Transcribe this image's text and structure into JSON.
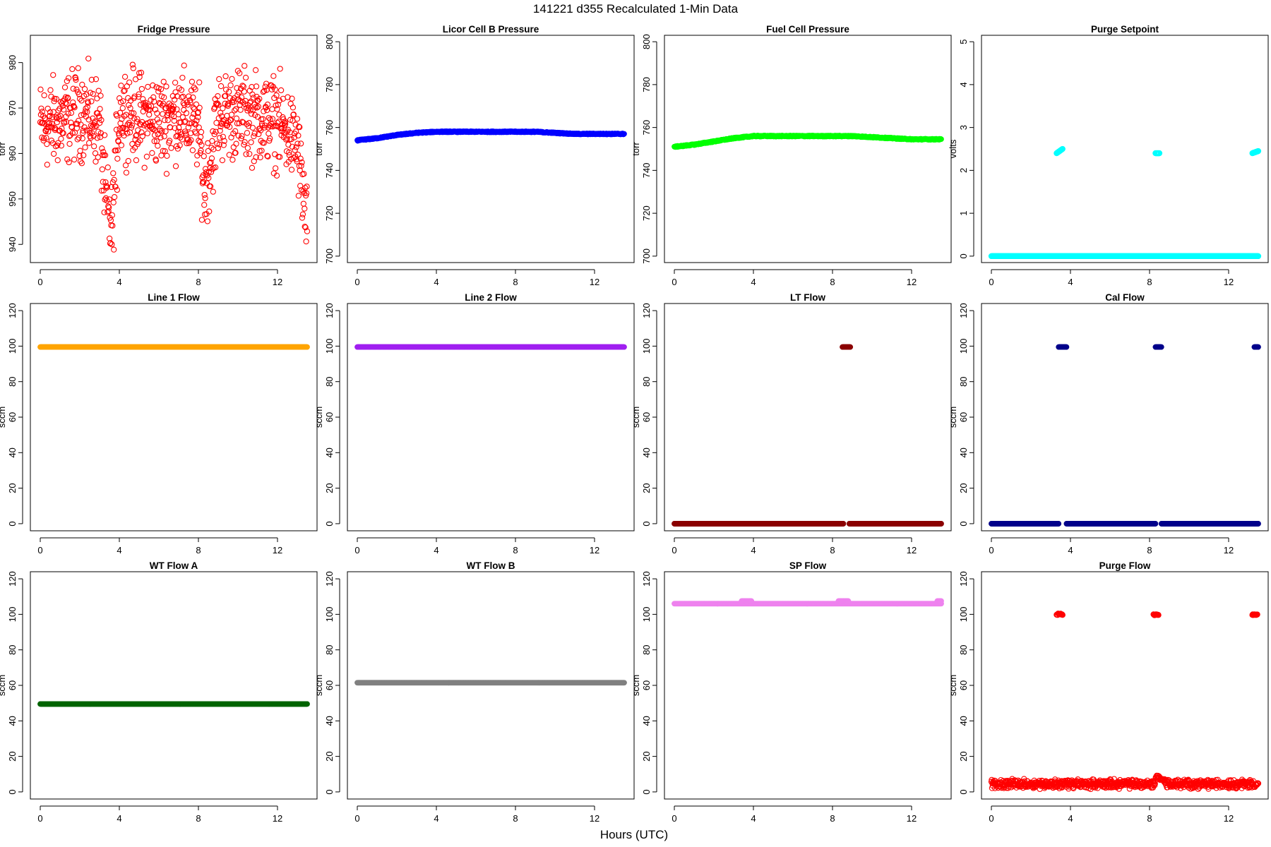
{
  "figure": {
    "title": "141221   d355   Recalculated 1-Min Data",
    "xlabel": "Hours (UTC)"
  },
  "chart_data": [
    {
      "type": "scatter",
      "title": "Fridge Pressure",
      "ylabel": "torr",
      "color": "#ff0000",
      "style": "noisy",
      "marker": "open",
      "xlim": [
        0,
        13.5
      ],
      "xticks": [
        0,
        4,
        8,
        12
      ],
      "ylim": [
        936,
        986
      ],
      "yticks": [
        940,
        950,
        960,
        970,
        980
      ],
      "series": [
        {
          "x": [
            0,
            1,
            2,
            3,
            3.3,
            3.6,
            3.8,
            4,
            5,
            6,
            7,
            8,
            8.3,
            8.6,
            9,
            10,
            11,
            12,
            13,
            13.5
          ],
          "y": [
            966,
            967,
            969,
            967,
            950,
            943,
            955,
            970,
            968,
            967,
            969,
            966,
            952,
            958,
            968,
            969,
            968,
            967,
            962,
            943
          ],
          "spread": 10
        }
      ]
    },
    {
      "type": "scatter",
      "title": "Licor Cell B Pressure",
      "ylabel": "torr",
      "color": "#0000ff",
      "style": "dense",
      "xlim": [
        0,
        13.5
      ],
      "xticks": [
        0,
        4,
        8,
        12
      ],
      "ylim": [
        697,
        803
      ],
      "yticks": [
        700,
        720,
        740,
        760,
        780,
        800
      ],
      "series": [
        {
          "x": [
            0,
            1,
            2,
            3,
            4,
            5,
            6,
            7,
            8,
            9,
            10,
            11,
            12,
            13,
            13.5
          ],
          "y": [
            754,
            755,
            756.5,
            757.5,
            758,
            758,
            758,
            758,
            758,
            758,
            757.5,
            757,
            757,
            757,
            757
          ]
        }
      ]
    },
    {
      "type": "scatter",
      "title": "Fuel Cell Pressure",
      "ylabel": "torr",
      "color": "#00ff00",
      "style": "dense",
      "xlim": [
        0,
        13.5
      ],
      "xticks": [
        0,
        4,
        8,
        12
      ],
      "ylim": [
        697,
        803
      ],
      "yticks": [
        700,
        720,
        740,
        760,
        780,
        800
      ],
      "series": [
        {
          "x": [
            0,
            1,
            2,
            3,
            4,
            5,
            6,
            7,
            8,
            9,
            10,
            11,
            12,
            13,
            13.5
          ],
          "y": [
            751,
            752,
            753.5,
            755,
            756,
            756,
            756,
            756,
            756,
            756,
            755.5,
            755,
            754.5,
            754.5,
            754.5
          ]
        }
      ]
    },
    {
      "type": "scatter",
      "title": "Purge Setpoint",
      "ylabel": "volts",
      "color": "#00ffff",
      "style": "segments",
      "marker": "open",
      "xlim": [
        0,
        13.5
      ],
      "xticks": [
        0,
        4,
        8,
        12
      ],
      "ylim": [
        -0.15,
        5.15
      ],
      "yticks": [
        0,
        1,
        2,
        3,
        4,
        5
      ],
      "series": [
        {
          "segments": [
            [
              0,
              13.5,
              0,
              0
            ],
            [
              3.3,
              3.6,
              2.4,
              2.5
            ],
            [
              8.3,
              8.5,
              2.4,
              2.4
            ],
            [
              13.2,
              13.5,
              2.4,
              2.45
            ]
          ]
        }
      ]
    },
    {
      "type": "scatter",
      "title": "Line 1 Flow",
      "ylabel": "sccm",
      "color": "#ffa500",
      "style": "segments",
      "xlim": [
        0,
        13.5
      ],
      "xticks": [
        0,
        4,
        8,
        12
      ],
      "ylim": [
        -4,
        124
      ],
      "yticks": [
        0,
        20,
        40,
        60,
        80,
        100,
        120
      ],
      "series": [
        {
          "segments": [
            [
              0,
              13.5,
              99.5,
              99.5
            ]
          ]
        }
      ]
    },
    {
      "type": "scatter",
      "title": "Line 2 Flow",
      "ylabel": "sccm",
      "color": "#a020f0",
      "style": "segments",
      "xlim": [
        0,
        13.5
      ],
      "xticks": [
        0,
        4,
        8,
        12
      ],
      "ylim": [
        -4,
        124
      ],
      "yticks": [
        0,
        20,
        40,
        60,
        80,
        100,
        120
      ],
      "series": [
        {
          "segments": [
            [
              0,
              13.5,
              99.5,
              99.5
            ]
          ]
        }
      ]
    },
    {
      "type": "scatter",
      "title": "LT Flow",
      "ylabel": "sccm",
      "color": "#8b0000",
      "style": "segments",
      "xlim": [
        0,
        13.5
      ],
      "xticks": [
        0,
        4,
        8,
        12
      ],
      "ylim": [
        -4,
        124
      ],
      "yticks": [
        0,
        20,
        40,
        60,
        80,
        100,
        120
      ],
      "series": [
        {
          "segments": [
            [
              0,
              8.55,
              0,
              0
            ],
            [
              8.85,
              13.5,
              0,
              0
            ],
            [
              8.5,
              8.9,
              99.5,
              99.5
            ]
          ]
        }
      ]
    },
    {
      "type": "scatter",
      "title": "Cal Flow",
      "ylabel": "sccm",
      "color": "#00008b",
      "style": "segments",
      "xlim": [
        0,
        13.5
      ],
      "xticks": [
        0,
        4,
        8,
        12
      ],
      "ylim": [
        -4,
        124
      ],
      "yticks": [
        0,
        20,
        40,
        60,
        80,
        100,
        120
      ],
      "series": [
        {
          "segments": [
            [
              0,
              3.4,
              0,
              0
            ],
            [
              3.8,
              8.3,
              0,
              0
            ],
            [
              8.6,
              13.5,
              0,
              0
            ],
            [
              3.4,
              3.8,
              99.5,
              99.5
            ],
            [
              8.3,
              8.6,
              99.5,
              99.5
            ],
            [
              13.3,
              13.5,
              99.5,
              99.5
            ]
          ]
        }
      ]
    },
    {
      "type": "scatter",
      "title": "WT Flow A",
      "ylabel": "sccm",
      "color": "#006400",
      "style": "segments",
      "xlim": [
        0,
        13.5
      ],
      "xticks": [
        0,
        4,
        8,
        12
      ],
      "ylim": [
        -4,
        124
      ],
      "yticks": [
        0,
        20,
        40,
        60,
        80,
        100,
        120
      ],
      "series": [
        {
          "segments": [
            [
              0,
              13.5,
              49.5,
              49.5
            ]
          ]
        }
      ]
    },
    {
      "type": "scatter",
      "title": "WT Flow B",
      "ylabel": "sccm",
      "color": "#808080",
      "style": "segments",
      "xlim": [
        0,
        13.5
      ],
      "xticks": [
        0,
        4,
        8,
        12
      ],
      "ylim": [
        -4,
        124
      ],
      "yticks": [
        0,
        20,
        40,
        60,
        80,
        100,
        120
      ],
      "series": [
        {
          "segments": [
            [
              0,
              13.5,
              61.5,
              61.5
            ]
          ]
        }
      ]
    },
    {
      "type": "scatter",
      "title": "SP Flow",
      "ylabel": "sccm",
      "color": "#ee82ee",
      "style": "segments",
      "xlim": [
        0,
        13.5
      ],
      "xticks": [
        0,
        4,
        8,
        12
      ],
      "ylim": [
        -4,
        124
      ],
      "yticks": [
        0,
        20,
        40,
        60,
        80,
        100,
        120
      ],
      "series": [
        {
          "segments": [
            [
              0,
              13.5,
              106,
              106
            ],
            [
              3.4,
              3.9,
              107.5,
              107.5
            ],
            [
              8.3,
              8.8,
              107.5,
              107.5
            ],
            [
              13.3,
              13.5,
              107.5,
              107.5
            ]
          ]
        }
      ]
    },
    {
      "type": "scatter",
      "title": "Purge Flow",
      "ylabel": "sccm",
      "color": "#ff0000",
      "style": "purge",
      "marker": "open",
      "xlim": [
        0,
        13.5
      ],
      "xticks": [
        0,
        4,
        8,
        12
      ],
      "ylim": [
        -4,
        124
      ],
      "yticks": [
        0,
        20,
        40,
        60,
        80,
        100,
        120
      ],
      "series": [
        {
          "base": 4.5,
          "noise": 3,
          "bumps": [
            [
              8.3,
              8.8,
              9
            ]
          ],
          "clusters": [
            [
              3.3,
              3.6,
              99.5,
              100.5
            ],
            [
              8.2,
              8.45,
              99.5,
              100
            ],
            [
              13.2,
              13.45,
              99.5,
              100
            ]
          ]
        }
      ]
    }
  ]
}
